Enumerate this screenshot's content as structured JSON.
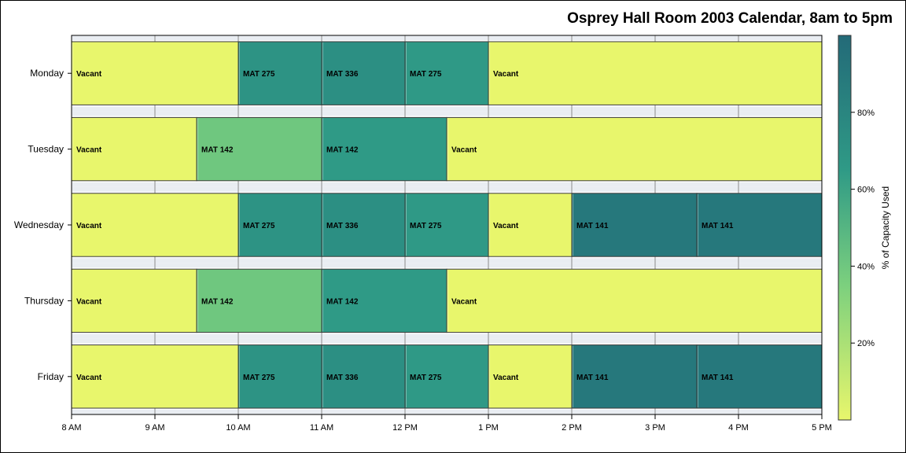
{
  "chart_data": {
    "type": "gantt",
    "title": "Osprey Hall Room 2003 Calendar, 8am to 5pm",
    "x_ticks": [
      {
        "v": 8,
        "label": "8 AM"
      },
      {
        "v": 9,
        "label": "9 AM"
      },
      {
        "v": 10,
        "label": "10 AM"
      },
      {
        "v": 11,
        "label": "11 AM"
      },
      {
        "v": 12,
        "label": "12 PM"
      },
      {
        "v": 13,
        "label": "1 PM"
      },
      {
        "v": 14,
        "label": "2 PM"
      },
      {
        "v": 15,
        "label": "3 PM"
      },
      {
        "v": 16,
        "label": "4 PM"
      },
      {
        "v": 17,
        "label": "5 PM"
      }
    ],
    "xlim": [
      8,
      17
    ],
    "grid": true,
    "days": [
      {
        "day": "Monday",
        "blocks": [
          {
            "start": 8,
            "end": 10,
            "label": "Vacant",
            "pct": 0
          },
          {
            "start": 10,
            "end": 11,
            "label": "MAT 275",
            "pct": 70
          },
          {
            "start": 11,
            "end": 12,
            "label": "MAT 336",
            "pct": 73
          },
          {
            "start": 12,
            "end": 13,
            "label": "MAT 275",
            "pct": 66
          },
          {
            "start": 13,
            "end": 17,
            "label": "Vacant",
            "pct": 0
          }
        ]
      },
      {
        "day": "Tuesday",
        "blocks": [
          {
            "start": 8,
            "end": 9.5,
            "label": "Vacant",
            "pct": 0
          },
          {
            "start": 9.5,
            "end": 11,
            "label": "MAT 142",
            "pct": 40
          },
          {
            "start": 11,
            "end": 12.5,
            "label": "MAT 142",
            "pct": 65
          },
          {
            "start": 12.5,
            "end": 17,
            "label": "Vacant",
            "pct": 0
          }
        ]
      },
      {
        "day": "Wednesday",
        "blocks": [
          {
            "start": 8,
            "end": 10,
            "label": "Vacant",
            "pct": 0
          },
          {
            "start": 10,
            "end": 11,
            "label": "MAT 275",
            "pct": 70
          },
          {
            "start": 11,
            "end": 12,
            "label": "MAT 336",
            "pct": 73
          },
          {
            "start": 12,
            "end": 13,
            "label": "MAT 275",
            "pct": 66
          },
          {
            "start": 13,
            "end": 14,
            "label": "Vacant",
            "pct": 0
          },
          {
            "start": 14,
            "end": 15.5,
            "label": "MAT 141",
            "pct": 90
          },
          {
            "start": 15.5,
            "end": 17,
            "label": "MAT 141",
            "pct": 90
          }
        ]
      },
      {
        "day": "Thursday",
        "blocks": [
          {
            "start": 8,
            "end": 9.5,
            "label": "Vacant",
            "pct": 0
          },
          {
            "start": 9.5,
            "end": 11,
            "label": "MAT 142",
            "pct": 40
          },
          {
            "start": 11,
            "end": 12.5,
            "label": "MAT 142",
            "pct": 65
          },
          {
            "start": 12.5,
            "end": 17,
            "label": "Vacant",
            "pct": 0
          }
        ]
      },
      {
        "day": "Friday",
        "blocks": [
          {
            "start": 8,
            "end": 10,
            "label": "Vacant",
            "pct": 0
          },
          {
            "start": 10,
            "end": 11,
            "label": "MAT 275",
            "pct": 70
          },
          {
            "start": 11,
            "end": 12,
            "label": "MAT 336",
            "pct": 73
          },
          {
            "start": 12,
            "end": 13,
            "label": "MAT 275",
            "pct": 66
          },
          {
            "start": 13,
            "end": 14,
            "label": "Vacant",
            "pct": 0
          },
          {
            "start": 14,
            "end": 15.5,
            "label": "MAT 141",
            "pct": 90
          },
          {
            "start": 15.5,
            "end": 17,
            "label": "MAT 141",
            "pct": 90
          }
        ]
      }
    ],
    "colorbar": {
      "label": "% of Capacity Used",
      "range": [
        0,
        100
      ],
      "ticks": [
        {
          "v": 20,
          "label": "20%"
        },
        {
          "v": 40,
          "label": "40%"
        },
        {
          "v": 60,
          "label": "60%"
        },
        {
          "v": 80,
          "label": "80%"
        }
      ],
      "colors": [
        "#e8f66c",
        "#7cd07e",
        "#2f9a86",
        "#236a78"
      ]
    }
  }
}
